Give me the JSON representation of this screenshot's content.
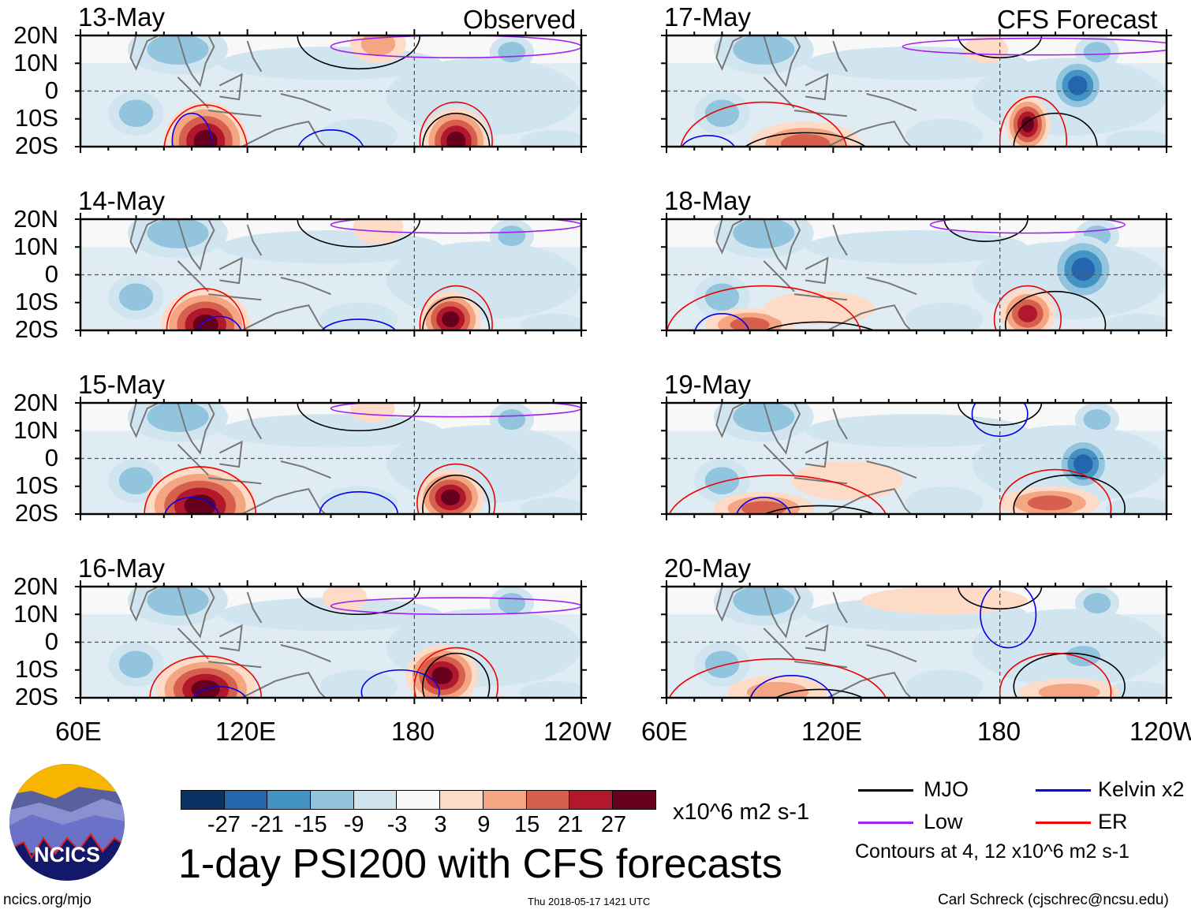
{
  "panels_left_corner": "Observed",
  "panels_right_corner": "CFS Forecast",
  "left_dates": [
    "13-May",
    "14-May",
    "15-May",
    "16-May"
  ],
  "right_dates": [
    "17-May",
    "18-May",
    "19-May",
    "20-May"
  ],
  "lat_labels": [
    "20N",
    "10N",
    "0",
    "10S",
    "20S"
  ],
  "lon_labels": [
    "60E",
    "120E",
    "180",
    "120W"
  ],
  "colorbar": {
    "colors": [
      "#0a3263",
      "#2366ad",
      "#4394c4",
      "#92c4de",
      "#d1e5f0",
      "#f8f8f8",
      "#fddbc7",
      "#f4a582",
      "#d6604d",
      "#b2182b",
      "#67001f"
    ],
    "ticks": [
      "-27",
      "-21",
      "-15",
      "-9",
      "-3",
      "3",
      "9",
      "15",
      "21",
      "27"
    ],
    "units": "x10^6 m2 s-1"
  },
  "title": "1-day PSI200 with CFS forecasts",
  "legend": {
    "items": [
      {
        "label": "MJO",
        "color": "#000000"
      },
      {
        "label": "Kelvin x2",
        "color": "#0000ee"
      },
      {
        "label": "Low",
        "color": "#a020f0"
      },
      {
        "label": "ER",
        "color": "#ee0000"
      }
    ],
    "note": "Contours at 4, 12 x10^6 m2 s-1"
  },
  "logo": {
    "text": "NCICS"
  },
  "footer": {
    "url": "ncics.org/mjo",
    "timestamp": "Thu 2018-05-17 1421 UTC",
    "credit": "Carl Schreck (cjschrec@ncsu.edu)"
  }
}
